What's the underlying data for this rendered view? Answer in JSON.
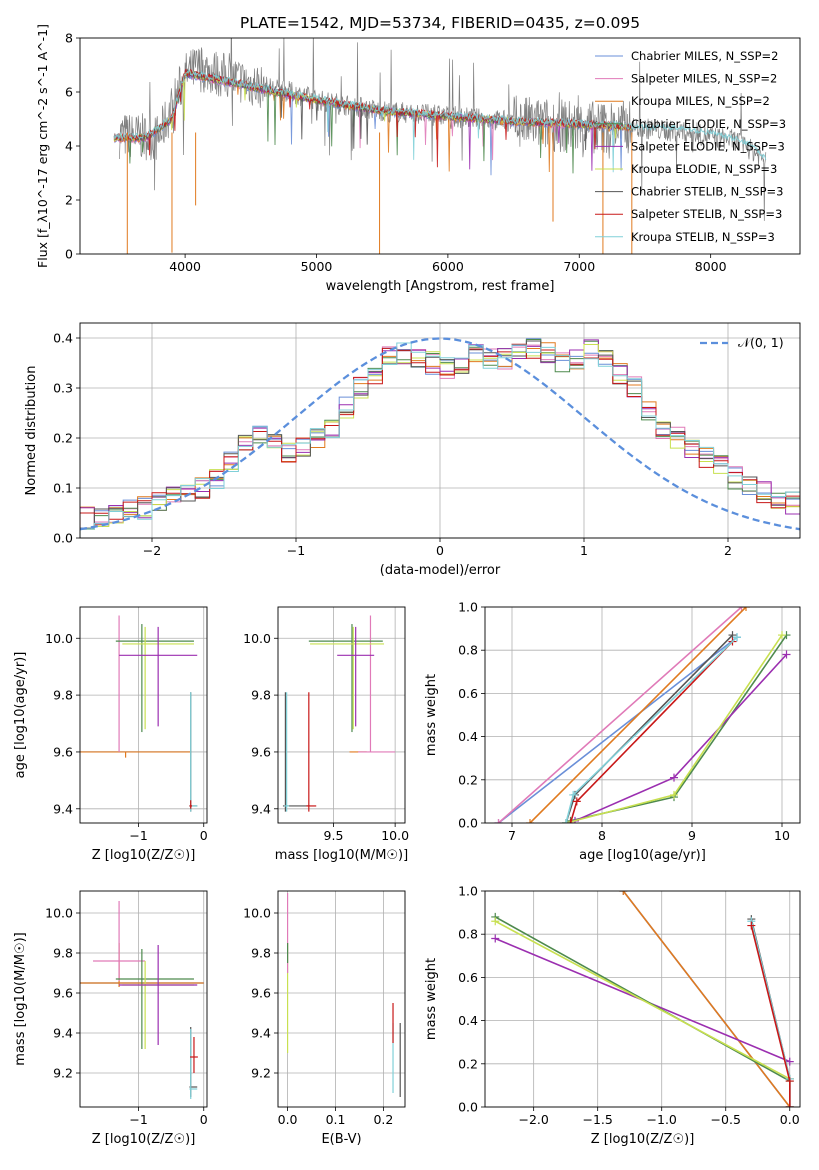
{
  "figure": {
    "title": "PLATE=1542, MJD=53734, FIBERID=0435, z=0.095"
  },
  "colors": {
    "chabrier_miles": "#6a8fd8",
    "salpeter_miles": "#e07ab8",
    "kroupa_miles": "#e07a1f",
    "chabrier_elodie": "#4e8a4e",
    "salpeter_elodie": "#9b2fb0",
    "kroupa_elodie": "#c8e050",
    "chabrier_stelib": "#555555",
    "salpeter_stelib": "#c81818",
    "kroupa_stelib": "#80d0d8"
  },
  "chart_data": [
    {
      "id": "spectrum",
      "type": "line",
      "xlabel": "wavelength [Angstrom, rest frame]",
      "ylabel": "Flux [f_λ10^-17 erg cm^-2 s^-1 A^-1]",
      "xlim": [
        3200,
        8680
      ],
      "ylim": [
        0,
        8
      ],
      "xticks": [
        4000,
        5000,
        6000,
        7000,
        8000
      ],
      "yticks": [
        0,
        2,
        4,
        6,
        8
      ],
      "grid": false,
      "legend_position": "top-right",
      "legend": [
        "Chabrier MILES, N_SSP=2",
        "Salpeter MILES, N_SSP=2",
        "Kroupa MILES, N_SSP=2",
        "Chabrier ELODIE, N_SSP=3",
        "Salpeter ELODIE, N_SSP=3",
        "Kroupa ELODIE, N_SSP=3",
        "Chabrier STELIB, N_SSP=3",
        "Salpeter STELIB, N_SSP=3",
        "Kroupa STELIB, N_SSP=3"
      ],
      "data_continuum": {
        "x": [
          3500,
          3800,
          4000,
          4100,
          4300,
          4500,
          4800,
          5000,
          5500,
          6000,
          6500,
          7000,
          7400,
          7800,
          8200,
          8420
        ],
        "y": [
          4.4,
          4.3,
          6.6,
          6.9,
          6.6,
          6.3,
          6.0,
          5.7,
          5.3,
          5.1,
          4.9,
          4.7,
          4.7,
          4.5,
          4.2,
          3.5
        ]
      },
      "model_continuum": {
        "x": [
          3460,
          3700,
          3900,
          4000,
          4100,
          4300,
          4600,
          5000,
          5500,
          6000,
          6500,
          7000,
          7400
        ],
        "y": [
          4.3,
          4.3,
          5.0,
          6.7,
          6.6,
          6.4,
          6.1,
          5.7,
          5.3,
          5.1,
          4.9,
          4.8,
          4.7
        ]
      },
      "kroupa_stelib_extension": {
        "x": [
          7400,
          7700,
          8000,
          8300,
          8420
        ],
        "y": [
          4.7,
          4.7,
          4.5,
          4.1,
          3.5
        ]
      }
    },
    {
      "id": "residuals",
      "type": "step",
      "xlabel": "(data-model)/error",
      "ylabel": "Normed distribution",
      "xlim": [
        -2.5,
        2.5
      ],
      "ylim": [
        0,
        0.43
      ],
      "xticks": [
        -2,
        -1,
        0,
        1,
        2
      ],
      "yticks": [
        0.0,
        0.1,
        0.2,
        0.3,
        0.4
      ],
      "grid": true,
      "legend_position": "top-right",
      "legend": [
        "𝒩(0, 1)"
      ],
      "bin_width": 0.1,
      "bins_start": -2.5,
      "histogram_profile": [
        0.04,
        0.045,
        0.05,
        0.055,
        0.06,
        0.07,
        0.08,
        0.09,
        0.1,
        0.12,
        0.15,
        0.19,
        0.21,
        0.2,
        0.17,
        0.18,
        0.2,
        0.22,
        0.26,
        0.3,
        0.33,
        0.36,
        0.37,
        0.36,
        0.35,
        0.34,
        0.35,
        0.37,
        0.36,
        0.36,
        0.37,
        0.38,
        0.37,
        0.35,
        0.36,
        0.38,
        0.36,
        0.33,
        0.3,
        0.25,
        0.22,
        0.2,
        0.18,
        0.16,
        0.15,
        0.12,
        0.1,
        0.09,
        0.08,
        0.07
      ],
      "normal_curve": {
        "mean": 0,
        "sigma": 1
      }
    },
    {
      "id": "age_vs_Z",
      "type": "errorbar",
      "xlabel": "Z [log10(Z/Z☉)]",
      "ylabel": "age  [log10(age/yr)]",
      "xlim": [
        -1.9,
        0.05
      ],
      "ylim": [
        9.35,
        10.11
      ],
      "xticks": [
        -1,
        0
      ],
      "yticks": [
        9.4,
        9.6,
        9.8,
        10.0
      ],
      "grid": true,
      "points": [
        {
          "model": "chabrier_miles",
          "x": -1.2,
          "y": 9.6,
          "xerr": [
            0.7,
            1.0
          ],
          "yerr": [
            0.0,
            0.0
          ]
        },
        {
          "model": "kroupa_miles",
          "x": -1.2,
          "y": 9.6,
          "xerr": [
            0.7,
            1.0
          ],
          "yerr": [
            0.02,
            0.0
          ]
        },
        {
          "model": "salpeter_miles",
          "x": -1.3,
          "y": 9.6,
          "xerr": [
            0.0,
            0.0
          ],
          "yerr": [
            0.0,
            0.48
          ]
        },
        {
          "model": "chabrier_elodie",
          "x": -0.95,
          "y": 9.99,
          "xerr": [
            0.4,
            0.8
          ],
          "yerr": [
            0.32,
            0.06
          ]
        },
        {
          "model": "kroupa_elodie",
          "x": -0.9,
          "y": 9.98,
          "xerr": [
            0.35,
            0.75
          ],
          "yerr": [
            0.3,
            0.06
          ]
        },
        {
          "model": "salpeter_elodie",
          "x": -0.7,
          "y": 9.94,
          "xerr": [
            0.6,
            0.6
          ],
          "yerr": [
            0.25,
            0.1
          ]
        },
        {
          "model": "chabrier_stelib",
          "x": -0.2,
          "y": 9.41,
          "xerr": [
            0.02,
            0.1
          ],
          "yerr": [
            0.02,
            0.4
          ]
        },
        {
          "model": "kroupa_stelib",
          "x": -0.2,
          "y": 9.41,
          "xerr": [
            0.02,
            0.1
          ],
          "yerr": [
            0.02,
            0.4
          ]
        },
        {
          "model": "salpeter_stelib",
          "x": -0.2,
          "y": 9.41,
          "xerr": [
            0.02,
            0.02
          ],
          "yerr": [
            0.01,
            0.02
          ]
        }
      ]
    },
    {
      "id": "age_vs_mass",
      "type": "errorbar",
      "xlabel": "mass [log10(M/M☉)]",
      "ylabel": "",
      "xlim": [
        9.05,
        10.08
      ],
      "ylim": [
        9.35,
        10.11
      ],
      "xticks": [
        9.5,
        10.0
      ],
      "yticks": [
        9.4,
        9.6,
        9.8,
        10.0
      ],
      "grid": true,
      "points": [
        {
          "model": "kroupa_miles",
          "x": 9.65,
          "y": 9.6,
          "xerr": [
            0.02,
            0.12
          ],
          "yerr": [
            0.0,
            0.0
          ]
        },
        {
          "model": "salpeter_miles",
          "x": 9.8,
          "y": 9.6,
          "xerr": [
            0.1,
            0.2
          ],
          "yerr": [
            0.0,
            0.48
          ]
        },
        {
          "model": "chabrier_elodie",
          "x": 9.65,
          "y": 9.99,
          "xerr": [
            0.35,
            0.25
          ],
          "yerr": [
            0.32,
            0.06
          ]
        },
        {
          "model": "kroupa_elodie",
          "x": 9.66,
          "y": 9.98,
          "xerr": [
            0.35,
            0.25
          ],
          "yerr": [
            0.3,
            0.06
          ]
        },
        {
          "model": "salpeter_elodie",
          "x": 9.68,
          "y": 9.94,
          "xerr": [
            0.15,
            0.15
          ],
          "yerr": [
            0.25,
            0.1
          ]
        },
        {
          "model": "chabrier_stelib",
          "x": 9.11,
          "y": 9.41,
          "xerr": [
            0.02,
            0.2
          ],
          "yerr": [
            0.02,
            0.4
          ]
        },
        {
          "model": "kroupa_stelib",
          "x": 9.12,
          "y": 9.41,
          "xerr": [
            0.02,
            0.02
          ],
          "yerr": [
            0.02,
            0.4
          ]
        },
        {
          "model": "salpeter_stelib",
          "x": 9.3,
          "y": 9.41,
          "xerr": [
            0.02,
            0.06
          ],
          "yerr": [
            0.02,
            0.4
          ]
        }
      ]
    },
    {
      "id": "weight_vs_age",
      "type": "line",
      "xlabel": "age  [log10(age/yr)]",
      "ylabel": "mass weight",
      "xlim": [
        6.7,
        10.2
      ],
      "ylim": [
        0.0,
        1.0
      ],
      "xticks": [
        7,
        8,
        9,
        10
      ],
      "yticks": [
        0.0,
        0.2,
        0.4,
        0.6,
        0.8,
        1.0
      ],
      "grid": true,
      "series": [
        {
          "model": "chabrier_miles",
          "x": [
            6.85,
            9.5
          ],
          "y": [
            0.0,
            0.86
          ]
        },
        {
          "model": "salpeter_miles",
          "x": [
            6.85,
            9.55
          ],
          "y": [
            0.0,
            1.0
          ]
        },
        {
          "model": "kroupa_miles",
          "x": [
            7.2,
            9.6
          ],
          "y": [
            0.0,
            1.0
          ]
        },
        {
          "model": "chabrier_elodie",
          "x": [
            7.65,
            8.8,
            10.05
          ],
          "y": [
            0.01,
            0.12,
            0.87
          ]
        },
        {
          "model": "salpeter_elodie",
          "x": [
            7.7,
            8.8,
            10.05
          ],
          "y": [
            0.01,
            0.21,
            0.78
          ]
        },
        {
          "model": "kroupa_elodie",
          "x": [
            7.6,
            8.8,
            10.0
          ],
          "y": [
            0.0,
            0.13,
            0.87
          ]
        },
        {
          "model": "chabrier_stelib",
          "x": [
            7.6,
            7.7,
            9.45
          ],
          "y": [
            0.0,
            0.13,
            0.87
          ]
        },
        {
          "model": "salpeter_stelib",
          "x": [
            7.65,
            7.72,
            9.45
          ],
          "y": [
            0.0,
            0.1,
            0.84
          ]
        },
        {
          "model": "kroupa_stelib",
          "x": [
            7.6,
            7.68,
            9.5
          ],
          "y": [
            0.0,
            0.13,
            0.86
          ]
        }
      ]
    },
    {
      "id": "mass_vs_Z",
      "type": "errorbar",
      "xlabel": "Z [log10(Z/Z☉)]",
      "ylabel": "mass [log10(M/M☉)]",
      "xlim": [
        -1.9,
        0.05
      ],
      "ylim": [
        9.03,
        10.11
      ],
      "xticks": [
        -1,
        0
      ],
      "yticks": [
        9.2,
        9.4,
        9.6,
        9.8,
        10.0
      ],
      "grid": true,
      "points": [
        {
          "model": "chabrier_miles",
          "x": -1.3,
          "y": 9.65,
          "xerr": [
            0.6,
            1.3
          ],
          "yerr": [
            0.0,
            0.0
          ]
        },
        {
          "model": "kroupa_miles",
          "x": -1.3,
          "y": 9.65,
          "xerr": [
            0.6,
            1.3
          ],
          "yerr": [
            0.02,
            0.2
          ]
        },
        {
          "model": "salpeter_miles",
          "x": -1.3,
          "y": 9.76,
          "xerr": [
            0.4,
            0.4
          ],
          "yerr": [
            0.1,
            0.3
          ]
        },
        {
          "model": "chabrier_elodie",
          "x": -0.95,
          "y": 9.67,
          "xerr": [
            0.4,
            0.8
          ],
          "yerr": [
            0.35,
            0.15
          ]
        },
        {
          "model": "kroupa_elodie",
          "x": -0.9,
          "y": 9.64,
          "xerr": [
            0.35,
            0.75
          ],
          "yerr": [
            0.32,
            0.12
          ]
        },
        {
          "model": "salpeter_elodie",
          "x": -0.7,
          "y": 9.64,
          "xerr": [
            0.6,
            0.6
          ],
          "yerr": [
            0.3,
            0.2
          ]
        },
        {
          "model": "chabrier_stelib",
          "x": -0.2,
          "y": 9.13,
          "xerr": [
            0.02,
            0.1
          ],
          "yerr": [
            0.05,
            0.3
          ]
        },
        {
          "model": "kroupa_stelib",
          "x": -0.2,
          "y": 9.12,
          "xerr": [
            0.02,
            0.1
          ],
          "yerr": [
            0.05,
            0.3
          ]
        },
        {
          "model": "salpeter_stelib",
          "x": -0.15,
          "y": 9.28,
          "xerr": [
            0.06,
            0.06
          ],
          "yerr": [
            0.08,
            0.1
          ]
        }
      ]
    },
    {
      "id": "mass_vs_EBV",
      "type": "errorbar",
      "xlabel": "E(B-V)",
      "ylabel": "",
      "xlim": [
        -0.02,
        0.245
      ],
      "ylim": [
        9.03,
        10.11
      ],
      "xticks": [
        0.0,
        0.1,
        0.2
      ],
      "yticks": [
        9.2,
        9.4,
        9.6,
        9.8,
        10.0
      ],
      "grid": true,
      "points": [
        {
          "model": "kroupa_elodie",
          "x": 0.0,
          "y": 9.8,
          "xerr": [
            0.0,
            0.0
          ],
          "yerr": [
            0.5,
            0.05
          ]
        },
        {
          "model": "salpeter_miles",
          "x": 0.0,
          "y": 9.8,
          "xerr": [
            0.0,
            0.0
          ],
          "yerr": [
            0.1,
            0.3
          ]
        },
        {
          "model": "chabrier_elodie",
          "x": 0.0,
          "y": 9.8,
          "xerr": [
            0.0,
            0.0
          ],
          "yerr": [
            0.05,
            0.05
          ]
        },
        {
          "model": "kroupa_stelib",
          "x": 0.22,
          "y": 9.2,
          "xerr": [
            0.0,
            0.0
          ],
          "yerr": [
            0.1,
            0.25
          ]
        },
        {
          "model": "salpeter_stelib",
          "x": 0.22,
          "y": 9.45,
          "xerr": [
            0.0,
            0.0
          ],
          "yerr": [
            0.1,
            0.1
          ]
        },
        {
          "model": "chabrier_stelib",
          "x": 0.235,
          "y": 9.2,
          "xerr": [
            0.0,
            0.0
          ],
          "yerr": [
            0.12,
            0.25
          ]
        }
      ]
    },
    {
      "id": "weight_vs_Z",
      "type": "line",
      "xlabel": "Z [log10(Z/Z☉)]",
      "ylabel": "mass weight",
      "xlim": [
        -2.38,
        0.08
      ],
      "ylim": [
        0.0,
        1.0
      ],
      "xticks": [
        -2.0,
        -1.5,
        -1.0,
        -0.5,
        0.0
      ],
      "yticks": [
        0.0,
        0.2,
        0.4,
        0.6,
        0.8,
        1.0
      ],
      "grid": true,
      "series": [
        {
          "model": "chabrier_miles",
          "x": [
            -1.3,
            0.0
          ],
          "y": [
            1.0,
            0.0
          ]
        },
        {
          "model": "kroupa_miles",
          "x": [
            -1.3,
            0.0
          ],
          "y": [
            1.0,
            0.0
          ]
        },
        {
          "model": "salpeter_elodie",
          "x": [
            -2.3,
            0.0
          ],
          "y": [
            0.78,
            0.21
          ]
        },
        {
          "model": "chabrier_elodie",
          "x": [
            -2.3,
            0.0
          ],
          "y": [
            0.88,
            0.12
          ]
        },
        {
          "model": "kroupa_elodie",
          "x": [
            -2.3,
            0.0
          ],
          "y": [
            0.86,
            0.13
          ]
        },
        {
          "model": "chabrier_stelib",
          "x": [
            -0.3,
            0.0,
            0.0
          ],
          "y": [
            0.87,
            0.13,
            0.0
          ]
        },
        {
          "model": "kroupa_stelib",
          "x": [
            -0.3,
            0.0,
            0.0
          ],
          "y": [
            0.86,
            0.13,
            0.0
          ]
        },
        {
          "model": "salpeter_stelib",
          "x": [
            -0.3,
            0.0,
            0.0
          ],
          "y": [
            0.84,
            0.12,
            0.0
          ]
        }
      ]
    }
  ]
}
